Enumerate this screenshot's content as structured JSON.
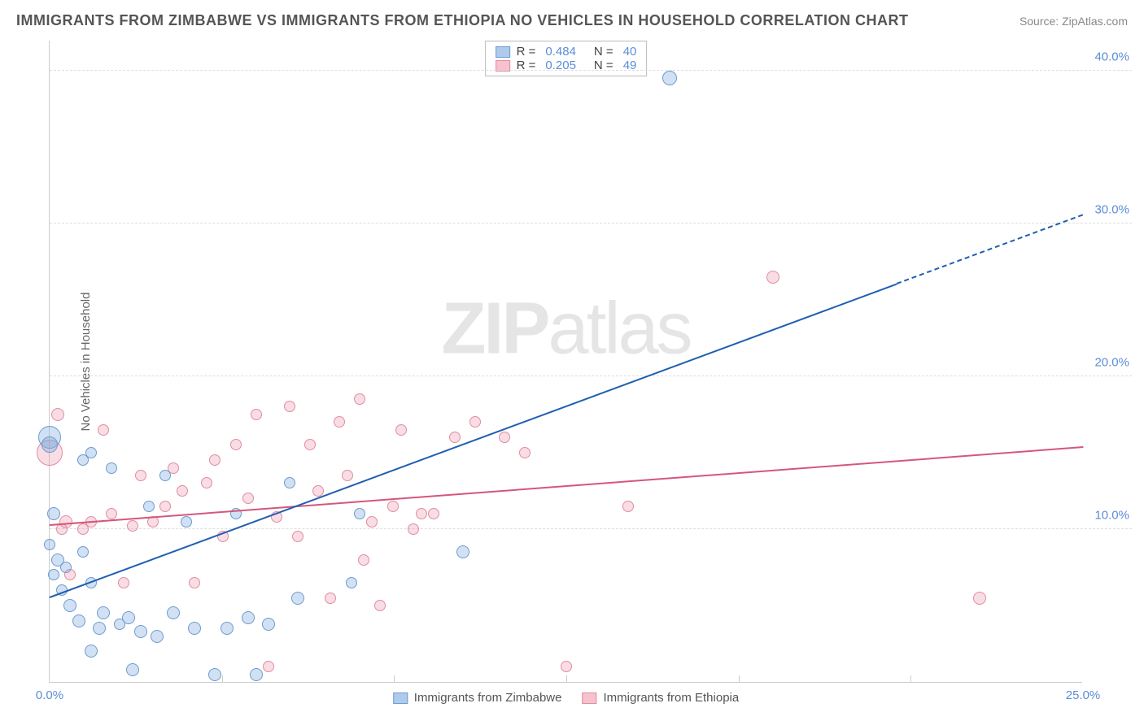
{
  "title": "IMMIGRANTS FROM ZIMBABWE VS IMMIGRANTS FROM ETHIOPIA NO VEHICLES IN HOUSEHOLD CORRELATION CHART",
  "source": "Source: ZipAtlas.com",
  "watermark_strong": "ZIP",
  "watermark_light": "atlas",
  "ylabel": "No Vehicles in Household",
  "legend_top": {
    "series": [
      {
        "swatch_fill": "#aecbec",
        "swatch_border": "#6b9bd1",
        "r_label": "R =",
        "r_value": "0.484",
        "n_label": "N =",
        "n_value": "40"
      },
      {
        "swatch_fill": "#f5c2ce",
        "swatch_border": "#e38ba0",
        "r_label": "R =",
        "r_value": "0.205",
        "n_label": "N =",
        "n_value": "49"
      }
    ]
  },
  "legend_bottom": {
    "items": [
      {
        "swatch_fill": "#aecbec",
        "swatch_border": "#6b9bd1",
        "label": "Immigrants from Zimbabwe"
      },
      {
        "swatch_fill": "#f5c2ce",
        "swatch_border": "#e38ba0",
        "label": "Immigrants from Ethiopia"
      }
    ]
  },
  "axes": {
    "xlim": [
      0,
      25
    ],
    "ylim": [
      0,
      42
    ],
    "xticks": [
      0.0,
      25.0
    ],
    "xtick_labels": [
      "0.0%",
      "25.0%"
    ],
    "xtick_minor": [
      4.17,
      8.33,
      12.5,
      16.67,
      20.83
    ],
    "yticks": [
      10.0,
      20.0,
      30.0,
      40.0
    ],
    "ytick_labels": [
      "10.0%",
      "20.0%",
      "30.0%",
      "40.0%"
    ]
  },
  "colors": {
    "zimbabwe_fill": "rgba(122,169,222,0.35)",
    "zimbabwe_stroke": "#6b9bd1",
    "ethiopia_fill": "rgba(231,144,165,0.30)",
    "ethiopia_stroke": "#e38ba0",
    "zimbabwe_line": "#1f5fb0",
    "ethiopia_line": "#d6567a",
    "grid": "#dddddd",
    "axis": "#cccccc",
    "tick_text": "#5b8dd6",
    "bg": "#ffffff"
  },
  "trend_lines": {
    "zimbabwe": {
      "x1": 0,
      "y1": 5.5,
      "x2": 20.5,
      "y2": 26.0,
      "dash_from_x": 20.5,
      "dash_to_x": 25,
      "dash_to_y": 30.5
    },
    "ethiopia": {
      "x1": 0,
      "y1": 10.2,
      "x2": 25,
      "y2": 15.3
    }
  },
  "points": {
    "zimbabwe": [
      {
        "x": 0.0,
        "y": 16.0,
        "r": 14
      },
      {
        "x": 0.0,
        "y": 15.5,
        "r": 10
      },
      {
        "x": 0.1,
        "y": 11.0,
        "r": 8
      },
      {
        "x": 0.0,
        "y": 9.0,
        "r": 7
      },
      {
        "x": 0.2,
        "y": 8.0,
        "r": 8
      },
      {
        "x": 0.4,
        "y": 7.5,
        "r": 7
      },
      {
        "x": 0.1,
        "y": 7.0,
        "r": 7
      },
      {
        "x": 0.3,
        "y": 6.0,
        "r": 7
      },
      {
        "x": 0.5,
        "y": 5.0,
        "r": 8
      },
      {
        "x": 0.8,
        "y": 14.5,
        "r": 7
      },
      {
        "x": 1.0,
        "y": 15.0,
        "r": 7
      },
      {
        "x": 0.8,
        "y": 8.5,
        "r": 7
      },
      {
        "x": 1.0,
        "y": 6.5,
        "r": 7
      },
      {
        "x": 0.7,
        "y": 4.0,
        "r": 8
      },
      {
        "x": 1.2,
        "y": 3.5,
        "r": 8
      },
      {
        "x": 1.5,
        "y": 14.0,
        "r": 7
      },
      {
        "x": 1.3,
        "y": 4.5,
        "r": 8
      },
      {
        "x": 1.0,
        "y": 2.0,
        "r": 8
      },
      {
        "x": 1.7,
        "y": 3.8,
        "r": 7
      },
      {
        "x": 1.9,
        "y": 4.2,
        "r": 8
      },
      {
        "x": 2.2,
        "y": 3.3,
        "r": 8
      },
      {
        "x": 2.0,
        "y": 0.8,
        "r": 8
      },
      {
        "x": 2.4,
        "y": 11.5,
        "r": 7
      },
      {
        "x": 2.8,
        "y": 13.5,
        "r": 7
      },
      {
        "x": 2.6,
        "y": 3.0,
        "r": 8
      },
      {
        "x": 3.0,
        "y": 4.5,
        "r": 8
      },
      {
        "x": 3.3,
        "y": 10.5,
        "r": 7
      },
      {
        "x": 3.5,
        "y": 3.5,
        "r": 8
      },
      {
        "x": 4.0,
        "y": 0.5,
        "r": 8
      },
      {
        "x": 4.3,
        "y": 3.5,
        "r": 8
      },
      {
        "x": 4.5,
        "y": 11.0,
        "r": 7
      },
      {
        "x": 4.8,
        "y": 4.2,
        "r": 8
      },
      {
        "x": 5.0,
        "y": 0.5,
        "r": 8
      },
      {
        "x": 5.3,
        "y": 3.8,
        "r": 8
      },
      {
        "x": 5.8,
        "y": 13.0,
        "r": 7
      },
      {
        "x": 6.0,
        "y": 5.5,
        "r": 8
      },
      {
        "x": 7.3,
        "y": 6.5,
        "r": 7
      },
      {
        "x": 7.5,
        "y": 11.0,
        "r": 7
      },
      {
        "x": 10.0,
        "y": 8.5,
        "r": 8
      },
      {
        "x": 15.0,
        "y": 39.5,
        "r": 9
      }
    ],
    "ethiopia": [
      {
        "x": 0.0,
        "y": 15.0,
        "r": 16
      },
      {
        "x": 0.2,
        "y": 17.5,
        "r": 8
      },
      {
        "x": 0.4,
        "y": 10.5,
        "r": 8
      },
      {
        "x": 0.3,
        "y": 10.0,
        "r": 7
      },
      {
        "x": 0.5,
        "y": 7.0,
        "r": 7
      },
      {
        "x": 0.8,
        "y": 10.0,
        "r": 7
      },
      {
        "x": 1.0,
        "y": 10.5,
        "r": 7
      },
      {
        "x": 1.3,
        "y": 16.5,
        "r": 7
      },
      {
        "x": 1.5,
        "y": 11.0,
        "r": 7
      },
      {
        "x": 1.8,
        "y": 6.5,
        "r": 7
      },
      {
        "x": 2.0,
        "y": 10.2,
        "r": 7
      },
      {
        "x": 2.2,
        "y": 13.5,
        "r": 7
      },
      {
        "x": 2.5,
        "y": 10.5,
        "r": 7
      },
      {
        "x": 2.8,
        "y": 11.5,
        "r": 7
      },
      {
        "x": 3.0,
        "y": 14.0,
        "r": 7
      },
      {
        "x": 3.2,
        "y": 12.5,
        "r": 7
      },
      {
        "x": 3.5,
        "y": 6.5,
        "r": 7
      },
      {
        "x": 3.8,
        "y": 13.0,
        "r": 7
      },
      {
        "x": 4.0,
        "y": 14.5,
        "r": 7
      },
      {
        "x": 4.2,
        "y": 9.5,
        "r": 7
      },
      {
        "x": 4.5,
        "y": 15.5,
        "r": 7
      },
      {
        "x": 4.8,
        "y": 12.0,
        "r": 7
      },
      {
        "x": 5.0,
        "y": 17.5,
        "r": 7
      },
      {
        "x": 5.3,
        "y": 1.0,
        "r": 7
      },
      {
        "x": 5.5,
        "y": 10.8,
        "r": 7
      },
      {
        "x": 5.8,
        "y": 18.0,
        "r": 7
      },
      {
        "x": 6.0,
        "y": 9.5,
        "r": 7
      },
      {
        "x": 6.3,
        "y": 15.5,
        "r": 7
      },
      {
        "x": 6.5,
        "y": 12.5,
        "r": 7
      },
      {
        "x": 6.8,
        "y": 5.5,
        "r": 7
      },
      {
        "x": 7.0,
        "y": 17.0,
        "r": 7
      },
      {
        "x": 7.2,
        "y": 13.5,
        "r": 7
      },
      {
        "x": 7.5,
        "y": 18.5,
        "r": 7
      },
      {
        "x": 7.6,
        "y": 8.0,
        "r": 7
      },
      {
        "x": 7.8,
        "y": 10.5,
        "r": 7
      },
      {
        "x": 8.0,
        "y": 5.0,
        "r": 7
      },
      {
        "x": 8.3,
        "y": 11.5,
        "r": 7
      },
      {
        "x": 8.5,
        "y": 16.5,
        "r": 7
      },
      {
        "x": 8.8,
        "y": 10.0,
        "r": 7
      },
      {
        "x": 9.0,
        "y": 11.0,
        "r": 7
      },
      {
        "x": 9.3,
        "y": 11.0,
        "r": 7
      },
      {
        "x": 9.8,
        "y": 16.0,
        "r": 7
      },
      {
        "x": 10.3,
        "y": 17.0,
        "r": 7
      },
      {
        "x": 11.0,
        "y": 16.0,
        "r": 7
      },
      {
        "x": 11.5,
        "y": 15.0,
        "r": 7
      },
      {
        "x": 12.5,
        "y": 1.0,
        "r": 7
      },
      {
        "x": 17.5,
        "y": 26.5,
        "r": 8
      },
      {
        "x": 22.5,
        "y": 5.5,
        "r": 8
      },
      {
        "x": 14.0,
        "y": 11.5,
        "r": 7
      }
    ]
  }
}
